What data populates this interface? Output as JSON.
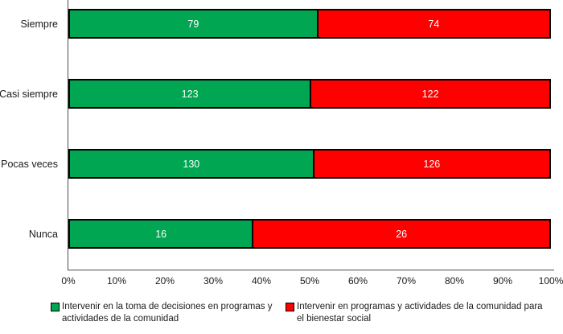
{
  "chart_data": {
    "type": "bar",
    "variant": "stacked-100",
    "orientation": "horizontal",
    "title": "",
    "categories": [
      "Siempre",
      "Casi siempre",
      "Pocas veces",
      "Nunca"
    ],
    "series": [
      {
        "name": "Intervenir en la toma de decisiones en programas y actividades de la comunidad",
        "color": "#00A651",
        "values": [
          79,
          123,
          130,
          16
        ]
      },
      {
        "name": "Intervenir en programas y actividades de la comunidad para el bienestar social",
        "color": "#FF0000",
        "values": [
          74,
          122,
          126,
          26
        ]
      }
    ],
    "x_axis": {
      "min": 0,
      "max": 100,
      "unit": "%",
      "tick_labels": [
        "0%",
        "10%",
        "20%",
        "30%",
        "40%",
        "50%",
        "60%",
        "70%",
        "80%",
        "90%",
        "100%"
      ]
    },
    "value_label_color": "#FFFFFF",
    "bar_border_color": "#000000",
    "axis_line_color": "#4D4D4D",
    "grid": false,
    "legend_position": "bottom"
  }
}
